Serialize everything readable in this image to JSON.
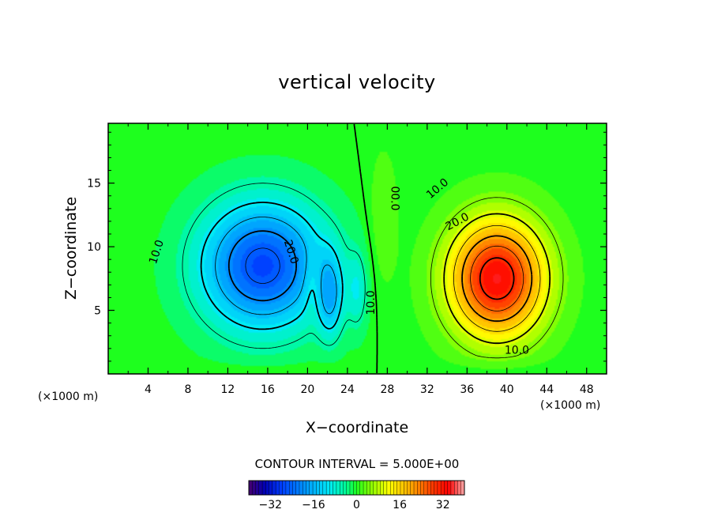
{
  "chart_data": {
    "type": "heatmap",
    "title": "vertical velocity",
    "xlabel": "X−coordinate",
    "ylabel": "Z−coordinate",
    "x_unit": "(×1000 m)",
    "y_unit": "(×1000 m)",
    "xlim": [
      0,
      50
    ],
    "ylim": [
      0,
      19.7
    ],
    "x_ticks": [
      4,
      8,
      12,
      16,
      20,
      24,
      28,
      32,
      36,
      40,
      44,
      48
    ],
    "y_ticks": [
      5,
      10,
      15
    ],
    "contour_interval_text": "CONTOUR INTERVAL = 5.000E+00",
    "contour_interval": 5,
    "colorbar": {
      "range": [
        -40,
        40
      ],
      "ticks": [
        -32,
        -16,
        0,
        16,
        32
      ],
      "tick_labels": [
        "−32",
        "−16",
        "0",
        "16",
        "32"
      ]
    },
    "cells": [
      {
        "name": "downdraft",
        "center_x": 15.5,
        "center_z": 8.5,
        "peak": -27
      },
      {
        "name": "updraft",
        "center_x": 39,
        "center_z": 7.5,
        "peak": 34
      }
    ],
    "contour_labels": [
      {
        "text": "10.0",
        "x": 4.8,
        "z": 9.6,
        "angle": -72
      },
      {
        "text": "20.0",
        "x": 18.4,
        "z": 9.6,
        "angle": 72
      },
      {
        "text": "10.0",
        "x": 26.3,
        "z": 5.6,
        "angle": -90
      },
      {
        "text": "00.0",
        "x": 28.8,
        "z": 13.8,
        "angle": 90
      },
      {
        "text": "10.0",
        "x": 33.0,
        "z": 14.6,
        "angle": -40
      },
      {
        "text": "20.0",
        "x": 35.0,
        "z": 12.0,
        "angle": -28
      },
      {
        "text": "10.0",
        "x": 41.0,
        "z": 1.9,
        "angle": 0
      }
    ]
  }
}
